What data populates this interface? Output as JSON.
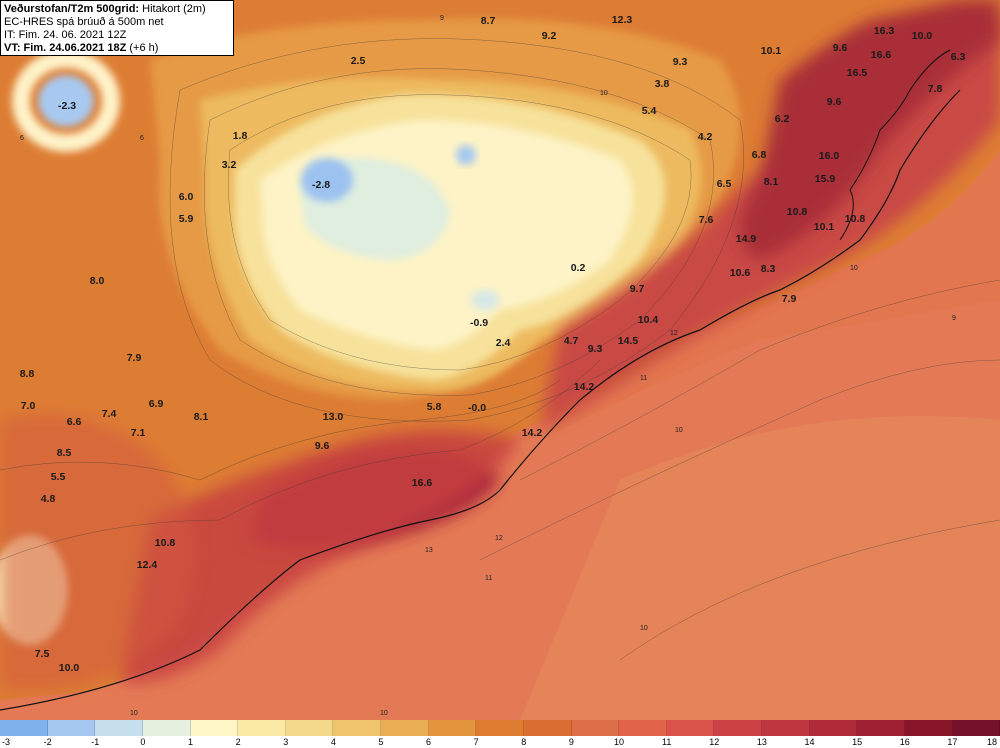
{
  "header": {
    "title_bold": "Veðurstofan/T2m 500grid:",
    "title_rest": " Hitakort (2m)",
    "line2": "EC-HRES spá brúuð á 500m net",
    "line3": "IT: Fim. 24. 06. 2021 12Z",
    "line4": "VT: Fim. 24.06.2021 18Z",
    "line4_suffix": " (+6 h)"
  },
  "colorbar": {
    "ticks": [
      "-3",
      "-2",
      "-1",
      "0",
      "1",
      "2",
      "3",
      "4",
      "5",
      "6",
      "7",
      "8",
      "9",
      "10",
      "11",
      "12",
      "13",
      "14",
      "15",
      "16",
      "17",
      "18"
    ],
    "colors": [
      "#7fb2ec",
      "#a4c8f0",
      "#c6e0ee",
      "#e6f1df",
      "#fff6c8",
      "#fbeaa6",
      "#f4d98a",
      "#eec46c",
      "#e9ad52",
      "#e3943c",
      "#dd7b30",
      "#d96d32",
      "#dd6f48",
      "#e0634a",
      "#d9534a",
      "#cc4244",
      "#c03640",
      "#b02a3a",
      "#9c1f32",
      "#88162b",
      "#74102a"
    ]
  },
  "labels": [
    {
      "t": "-2.3",
      "c": "blue"
    },
    {
      "t": "8.7"
    },
    {
      "t": "12.3"
    },
    {
      "t": "9.2"
    },
    {
      "t": "16.3"
    },
    {
      "t": "10.0"
    },
    {
      "t": "9.6"
    },
    {
      "t": "16.6"
    },
    {
      "t": "6.3"
    },
    {
      "t": "10.1"
    },
    {
      "t": "9.3"
    },
    {
      "t": "2.5"
    },
    {
      "t": "16.5"
    },
    {
      "t": "7.8"
    },
    {
      "t": "3.8"
    },
    {
      "t": "9.6"
    },
    {
      "t": "5.4"
    },
    {
      "t": "6.2"
    },
    {
      "t": "1.8"
    },
    {
      "t": "4.2"
    },
    {
      "t": "16.0"
    },
    {
      "t": "6.8"
    },
    {
      "t": "3.2"
    },
    {
      "t": "-2.8"
    },
    {
      "t": "15.9"
    },
    {
      "t": "8.1"
    },
    {
      "t": "6.5"
    },
    {
      "t": "6.0"
    },
    {
      "t": "10.8"
    },
    {
      "t": "10.8"
    },
    {
      "t": "5.9"
    },
    {
      "t": "7.6"
    },
    {
      "t": "10.1"
    },
    {
      "t": "14.9"
    },
    {
      "t": "8.0"
    },
    {
      "t": "0.2"
    },
    {
      "t": "8.3"
    },
    {
      "t": "10.6"
    },
    {
      "t": "9.7"
    },
    {
      "t": "7.9"
    },
    {
      "t": "10.4"
    },
    {
      "t": "-0.9"
    },
    {
      "t": "14.5"
    },
    {
      "t": "4.7"
    },
    {
      "t": "2.4"
    },
    {
      "t": "9.3"
    },
    {
      "t": "7.9"
    },
    {
      "t": "8.8"
    },
    {
      "t": "14.2"
    },
    {
      "t": "7.0"
    },
    {
      "t": "6.9"
    },
    {
      "t": "5.8"
    },
    {
      "t": "-0.0"
    },
    {
      "t": "7.4"
    },
    {
      "t": "13.0"
    },
    {
      "t": "8.1"
    },
    {
      "t": "6.6"
    },
    {
      "t": "7.1"
    },
    {
      "t": "14.2"
    },
    {
      "t": "9.6"
    },
    {
      "t": "8.5"
    },
    {
      "t": "5.5"
    },
    {
      "t": "16.6"
    },
    {
      "t": "4.8"
    },
    {
      "t": "10.8"
    },
    {
      "t": "12.4"
    },
    {
      "t": "7.5"
    },
    {
      "t": "10.0"
    }
  ]
}
